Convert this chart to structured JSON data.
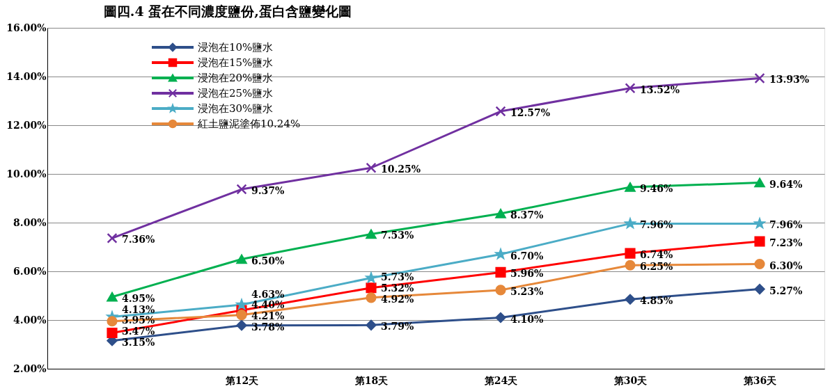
{
  "chart_data": {
    "type": "line",
    "title": "圖四.4 蛋在不同濃度鹽份,蛋白含鹽變化圖",
    "categories": [
      null,
      "第12天",
      "第18天",
      "第24天",
      "第30天",
      "第36天"
    ],
    "ylim": [
      2,
      16
    ],
    "yticks": [
      {
        "value": 2,
        "label": "2.00%"
      },
      {
        "value": 4,
        "label": "4.00%"
      },
      {
        "value": 6,
        "label": "6.00%"
      },
      {
        "value": 8,
        "label": "8.00%"
      },
      {
        "value": 10,
        "label": "10.00%"
      },
      {
        "value": 12,
        "label": "12.00%"
      },
      {
        "value": 14,
        "label": "14.00%"
      },
      {
        "value": 16,
        "label": "16.00%"
      }
    ],
    "grid": "y",
    "legend": "top left",
    "series": [
      {
        "name": "浸泡在10%鹽水",
        "color": "#2e4f8a",
        "marker": "diamond",
        "values": [
          3.15,
          3.78,
          3.79,
          4.1,
          4.85,
          5.27
        ],
        "value_labels": [
          "3.15%",
          "3.78%",
          "3.79%",
          "4.10%",
          "4.85%",
          "5.27%"
        ]
      },
      {
        "name": "浸泡在15%鹽水",
        "color": "#ff0000",
        "marker": "square",
        "values": [
          3.47,
          4.4,
          5.32,
          5.96,
          6.74,
          7.23
        ],
        "value_labels": [
          "3.47%",
          "4.40%",
          "5.32%",
          "5.96%",
          "6.74%",
          "7.23%"
        ]
      },
      {
        "name": "浸泡在20%鹽水",
        "color": "#00b050",
        "marker": "triangle",
        "values": [
          4.95,
          6.5,
          7.53,
          8.37,
          9.46,
          9.64
        ],
        "value_labels": [
          "4.95%",
          "6.50%",
          "7.53%",
          "8.37%",
          "9.46%",
          "9.64%"
        ]
      },
      {
        "name": "浸泡在25%鹽水",
        "color": "#7030a0",
        "marker": "cross",
        "values": [
          7.36,
          9.37,
          10.25,
          12.57,
          13.52,
          13.93
        ],
        "value_labels": [
          "7.36%",
          "9.37%",
          "10.25%",
          "12.57%",
          "13.52%",
          "13.93%"
        ]
      },
      {
        "name": "浸泡在30%鹽水",
        "color": "#4bacc6",
        "marker": "star",
        "values": [
          4.13,
          4.63,
          5.73,
          6.7,
          7.96,
          7.96
        ],
        "value_labels": [
          "4.13%",
          "4.63%",
          "5.73%",
          "6.70%",
          "7.96%",
          "7.96%"
        ]
      },
      {
        "name": "紅土鹽泥塗佈10.24%",
        "color": "#e6883a",
        "marker": "circle",
        "values": [
          3.95,
          4.21,
          4.92,
          5.23,
          6.25,
          6.3
        ],
        "value_labels": [
          "3.95%",
          "4.21%",
          "4.92%",
          "5.23%",
          "6.25%",
          "6.30%"
        ]
      }
    ]
  }
}
